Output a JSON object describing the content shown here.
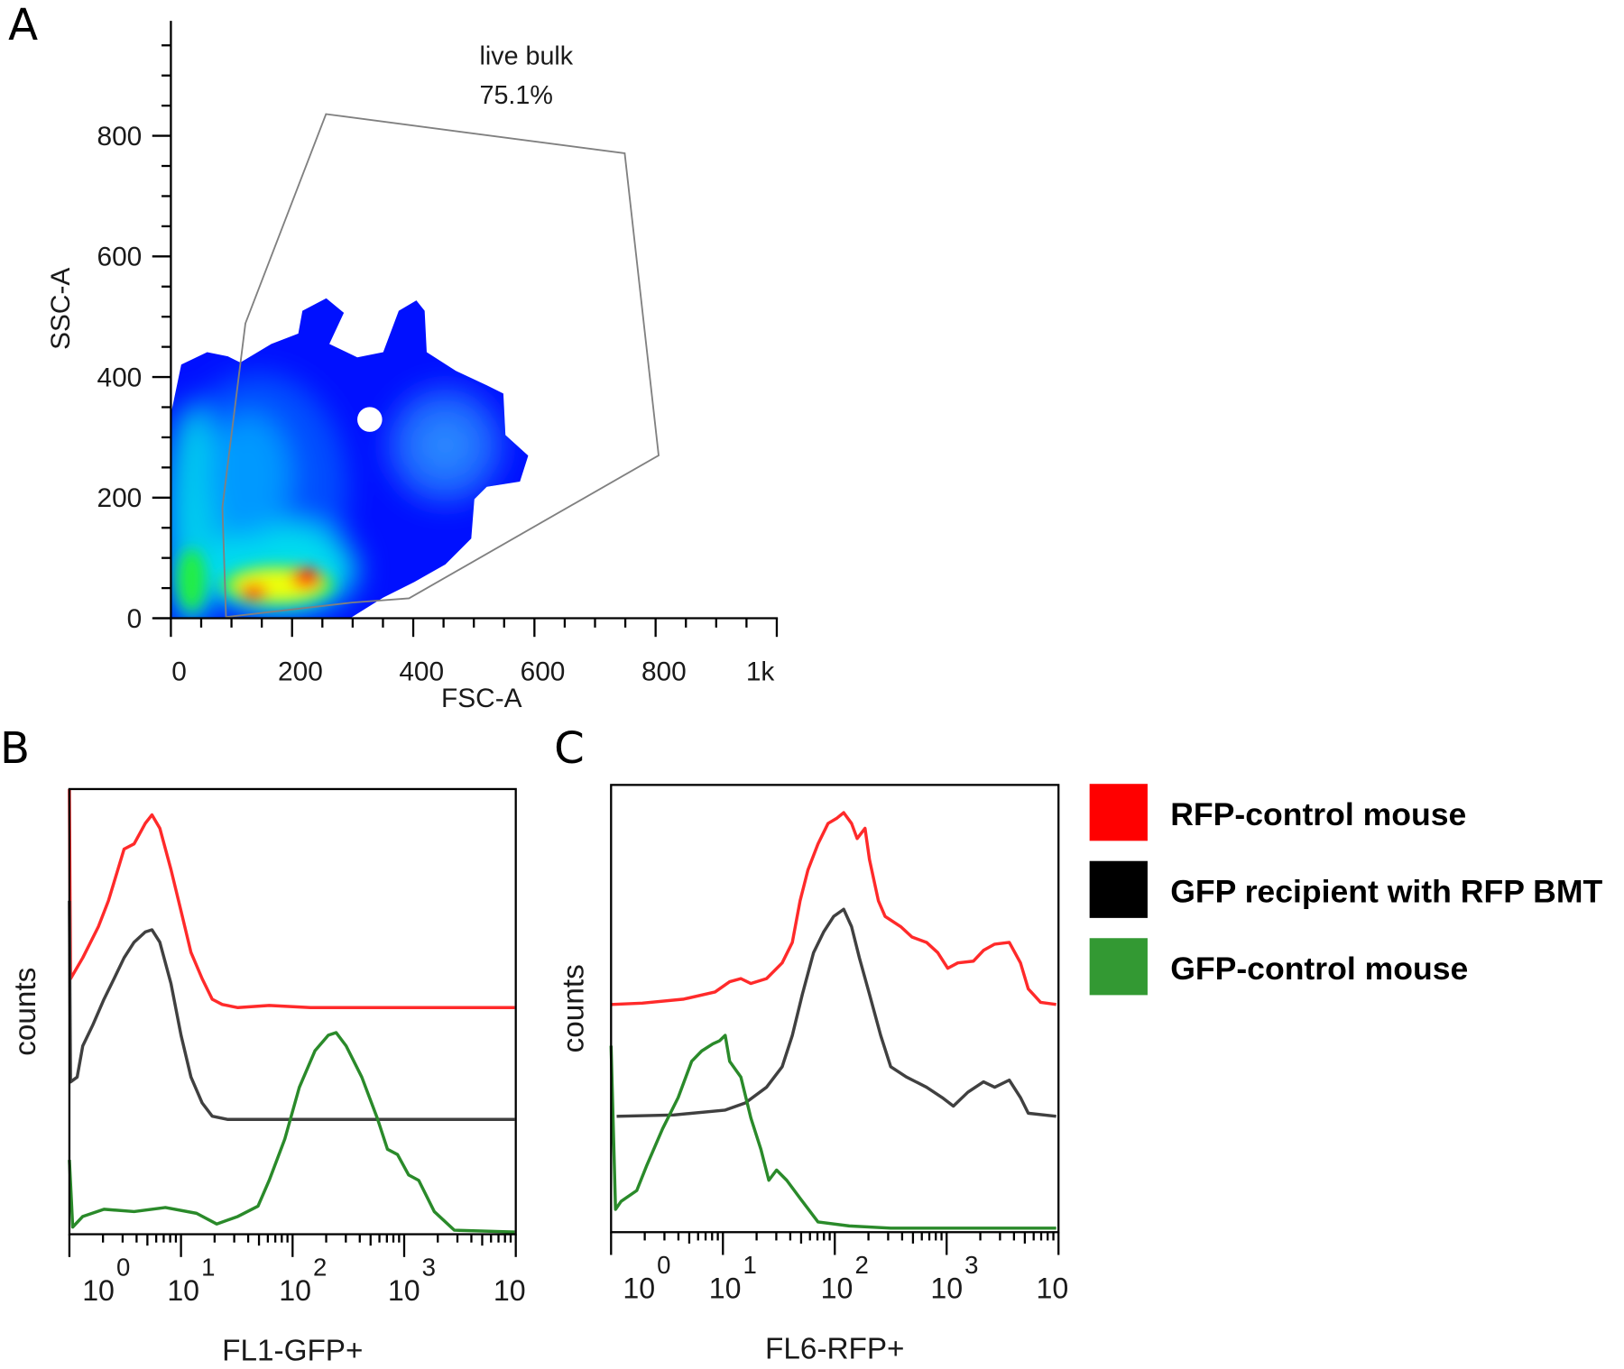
{
  "panels": {
    "a": "A",
    "b": "B",
    "c": "C"
  },
  "legend": [
    {
      "label": "RFP-control mouse",
      "color": "#ff0000"
    },
    {
      "label": "GFP recipient with RFP BMT",
      "color": "#000000"
    },
    {
      "label": "GFP-control mouse",
      "color": "#339933"
    }
  ],
  "chart_data": [
    {
      "panel": "A",
      "type": "heatmap",
      "xlabel": "FSC-A",
      "ylabel": "SSC-A",
      "xlim": [
        0,
        1000
      ],
      "ylim": [
        0,
        990
      ],
      "xticks": [
        0,
        200,
        400,
        600,
        800,
        1000
      ],
      "xtick_labels": [
        "0",
        "200",
        "400",
        "600",
        "800",
        "1k"
      ],
      "yticks": [
        0,
        200,
        400,
        600,
        800
      ],
      "ytick_labels": [
        "0",
        "200",
        "400",
        "600",
        "800"
      ],
      "minor_tick_step": 50,
      "colormap": [
        "#0000ff",
        "#00aaff",
        "#00ffee",
        "#33ee33",
        "#ffff00",
        "#ff0000"
      ],
      "gate": {
        "name": "live bulk",
        "percent": "75.1%",
        "vertices": [
          [
            256,
            836
          ],
          [
            749,
            771
          ],
          [
            805,
            270
          ],
          [
            393,
            33
          ],
          [
            299,
            26
          ],
          [
            91,
            2
          ],
          [
            85,
            184
          ],
          [
            123,
            489
          ]
        ],
        "color": "#808080"
      }
    },
    {
      "panel": "B",
      "type": "line",
      "xlabel": "FL1-GFP+",
      "ylabel": "counts",
      "xscale": "log",
      "xlim": [
        1,
        10000
      ],
      "xtick_labels": [
        {
          "base": "10",
          "exp": "0"
        },
        {
          "base": "10",
          "exp": "1"
        },
        {
          "base": "10",
          "exp": "2"
        },
        {
          "base": "10",
          "exp": "3"
        },
        {
          "base": "10",
          "exp": ""
        }
      ],
      "series": [
        {
          "color": "#ff2a2a",
          "log_x_y": [
            [
              0,
              100
            ],
            [
              0.01,
              57.4
            ],
            [
              0.12,
              62.1
            ],
            [
              0.26,
              69.1
            ],
            [
              0.35,
              74.9
            ],
            [
              0.49,
              86.5
            ],
            [
              0.58,
              87.7
            ],
            [
              0.68,
              92.3
            ],
            [
              0.74,
              94.2
            ],
            [
              0.81,
              91.2
            ],
            [
              0.91,
              81.9
            ],
            [
              1.0,
              72.6
            ],
            [
              1.09,
              63.3
            ],
            [
              1.19,
              57.4
            ],
            [
              1.28,
              52.8
            ],
            [
              1.37,
              51.6
            ],
            [
              1.51,
              50.9
            ],
            [
              1.79,
              51.4
            ],
            [
              2.16,
              50.9
            ],
            [
              3.99,
              50.9
            ]
          ]
        },
        {
          "color": "#404040",
          "log_x_y": [
            [
              0,
              74.9
            ],
            [
              0.01,
              34.2
            ],
            [
              0.07,
              35.3
            ],
            [
              0.12,
              42.3
            ],
            [
              0.21,
              47.0
            ],
            [
              0.31,
              52.8
            ],
            [
              0.4,
              57.4
            ],
            [
              0.49,
              62.1
            ],
            [
              0.58,
              65.6
            ],
            [
              0.68,
              67.9
            ],
            [
              0.74,
              68.4
            ],
            [
              0.81,
              65.6
            ],
            [
              0.91,
              56.3
            ],
            [
              1.0,
              44.7
            ],
            [
              1.09,
              35.3
            ],
            [
              1.19,
              29.5
            ],
            [
              1.28,
              26.5
            ],
            [
              1.42,
              25.8
            ],
            [
              3.99,
              25.8
            ]
          ]
        },
        {
          "color": "#2a8a2a",
          "log_x_y": [
            [
              0,
              16.7
            ],
            [
              0.03,
              1.6
            ],
            [
              0.12,
              4.0
            ],
            [
              0.31,
              5.6
            ],
            [
              0.58,
              5.1
            ],
            [
              0.86,
              6.0
            ],
            [
              1.14,
              4.7
            ],
            [
              1.32,
              2.3
            ],
            [
              1.51,
              4.0
            ],
            [
              1.69,
              6.3
            ],
            [
              1.79,
              12.1
            ],
            [
              1.93,
              21.4
            ],
            [
              2.06,
              33.0
            ],
            [
              2.2,
              41.2
            ],
            [
              2.32,
              44.7
            ],
            [
              2.39,
              45.3
            ],
            [
              2.48,
              42.3
            ],
            [
              2.62,
              35.3
            ],
            [
              2.76,
              26.0
            ],
            [
              2.85,
              19.1
            ],
            [
              2.94,
              17.9
            ],
            [
              3.04,
              13.3
            ],
            [
              3.13,
              12.1
            ],
            [
              3.27,
              5.1
            ],
            [
              3.45,
              0.9
            ],
            [
              3.99,
              0.5
            ]
          ]
        }
      ]
    },
    {
      "panel": "C",
      "type": "line",
      "xlabel": "FL6-RFP+",
      "ylabel": "counts",
      "xscale": "log",
      "xlim": [
        1,
        10000
      ],
      "xtick_labels": [
        {
          "base": "10",
          "exp": "0"
        },
        {
          "base": "10",
          "exp": "1"
        },
        {
          "base": "10",
          "exp": "2"
        },
        {
          "base": "10",
          "exp": "3"
        },
        {
          "base": "10",
          "exp": ""
        }
      ],
      "series": [
        {
          "color": "#ff2a2a",
          "log_x_y": [
            [
              0,
              50.9
            ],
            [
              0.28,
              51.2
            ],
            [
              0.65,
              52.1
            ],
            [
              0.93,
              53.7
            ],
            [
              1.06,
              56.0
            ],
            [
              1.16,
              56.7
            ],
            [
              1.25,
              55.6
            ],
            [
              1.39,
              56.7
            ],
            [
              1.53,
              60.2
            ],
            [
              1.62,
              64.8
            ],
            [
              1.69,
              74.1
            ],
            [
              1.76,
              81.0
            ],
            [
              1.85,
              86.8
            ],
            [
              1.94,
              91.4
            ],
            [
              2.02,
              92.6
            ],
            [
              2.08,
              93.8
            ],
            [
              2.15,
              91.4
            ],
            [
              2.2,
              88.0
            ],
            [
              2.27,
              90.3
            ],
            [
              2.31,
              83.3
            ],
            [
              2.39,
              74.1
            ],
            [
              2.45,
              70.6
            ],
            [
              2.59,
              68.3
            ],
            [
              2.69,
              66.0
            ],
            [
              2.82,
              64.8
            ],
            [
              2.92,
              62.5
            ],
            [
              3.01,
              59.0
            ],
            [
              3.1,
              60.2
            ],
            [
              3.24,
              60.6
            ],
            [
              3.33,
              63.0
            ],
            [
              3.43,
              64.4
            ],
            [
              3.56,
              64.8
            ],
            [
              3.66,
              60.2
            ],
            [
              3.73,
              54.4
            ],
            [
              3.84,
              51.4
            ],
            [
              3.98,
              50.9
            ]
          ]
        },
        {
          "color": "#404040",
          "log_x_y": [
            [
              0.05,
              25.9
            ],
            [
              0.56,
              26.2
            ],
            [
              1.02,
              27.3
            ],
            [
              1.2,
              28.9
            ],
            [
              1.39,
              32.4
            ],
            [
              1.53,
              37.0
            ],
            [
              1.62,
              44.0
            ],
            [
              1.71,
              53.2
            ],
            [
              1.81,
              62.5
            ],
            [
              1.9,
              67.1
            ],
            [
              1.99,
              70.6
            ],
            [
              2.08,
              72.2
            ],
            [
              2.15,
              68.3
            ],
            [
              2.22,
              61.3
            ],
            [
              2.31,
              53.2
            ],
            [
              2.41,
              44.0
            ],
            [
              2.5,
              37.0
            ],
            [
              2.64,
              34.7
            ],
            [
              2.82,
              32.4
            ],
            [
              2.96,
              30.1
            ],
            [
              3.06,
              28.2
            ],
            [
              3.19,
              31.3
            ],
            [
              3.33,
              33.6
            ],
            [
              3.43,
              32.4
            ],
            [
              3.56,
              34.0
            ],
            [
              3.66,
              30.1
            ],
            [
              3.73,
              26.6
            ],
            [
              3.98,
              25.9
            ]
          ]
        },
        {
          "color": "#2a8a2a",
          "log_x_y": [
            [
              0,
              41.7
            ],
            [
              0.04,
              5.1
            ],
            [
              0.09,
              6.9
            ],
            [
              0.23,
              9.3
            ],
            [
              0.32,
              15.0
            ],
            [
              0.46,
              23.1
            ],
            [
              0.6,
              30.1
            ],
            [
              0.72,
              38.2
            ],
            [
              0.81,
              40.5
            ],
            [
              0.91,
              42.1
            ],
            [
              0.97,
              42.8
            ],
            [
              1.02,
              44.0
            ],
            [
              1.06,
              38.2
            ],
            [
              1.16,
              34.7
            ],
            [
              1.25,
              25.5
            ],
            [
              1.34,
              18.5
            ],
            [
              1.41,
              11.6
            ],
            [
              1.48,
              13.9
            ],
            [
              1.57,
              11.6
            ],
            [
              1.71,
              6.9
            ],
            [
              1.85,
              2.3
            ],
            [
              2.13,
              1.4
            ],
            [
              2.5,
              0.9
            ],
            [
              3.98,
              0.9
            ]
          ]
        }
      ]
    }
  ]
}
